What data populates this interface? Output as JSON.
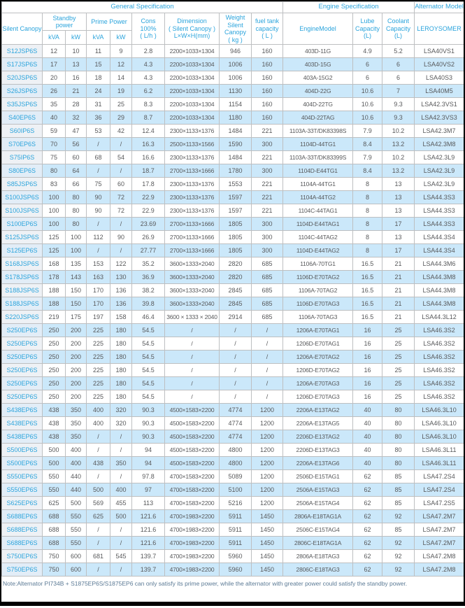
{
  "colors": {
    "header_text": "#2ba4dc",
    "model_text": "#2ba4dc",
    "data_text": "#58595b",
    "row_alt_bg": "#cbe8fa",
    "model_bg": "#eef1f5",
    "model_alt_bg": "#e2edf7",
    "border": "#bdbfc1",
    "note_text": "#5b7a95",
    "frame": "#000000"
  },
  "header": {
    "group_general": "General Specification",
    "group_engine": "Engine Specification",
    "group_alternator": "Alternator Model",
    "silent_canopy": "Silent Canopy",
    "standby_power": "Standby\npower",
    "prime_power": "Prime Power",
    "units": [
      "kVA",
      "kW",
      "kVA",
      "kW"
    ],
    "cons": "Cons\n100%\n( L/h )",
    "dimension": "Dimension\n( Silent Canopy )\nL×W×H(mm)",
    "weight": "Weight\nSilent\nCanopy\n( kg )",
    "fuel_tank": "fuel tank\ncapacity\n( L )",
    "engine_model": "EngineModel",
    "lube": "Lube\nCapacity\n(L)",
    "coolant": "Coolant\nCapacity\n(L)",
    "alternator": "LEROYSOMER"
  },
  "rows": [
    [
      "S12JSP6S",
      "12",
      "10",
      "11",
      "9",
      "2.8",
      "2200×1033×1304",
      "946",
      "160",
      "403D-11G",
      "4.9",
      "5.2",
      "LSA40VS1"
    ],
    [
      "S17JSP6S",
      "17",
      "13",
      "15",
      "12",
      "4.3",
      "2200×1033×1304",
      "1006",
      "160",
      "403D-15G",
      "6",
      "6",
      "LSA40VS2"
    ],
    [
      "S20JSP6S",
      "20",
      "16",
      "18",
      "14",
      "4.3",
      "2200×1033×1304",
      "1006",
      "160",
      "403A-15G2",
      "6",
      "6",
      "LSA40S3"
    ],
    [
      "S26JSP6S",
      "26",
      "21",
      "24",
      "19",
      "6.2",
      "2200×1033×1304",
      "1130",
      "160",
      "404D-22G",
      "10.6",
      "7",
      "LSA40M5"
    ],
    [
      "S35JSP6S",
      "35",
      "28",
      "31",
      "25",
      "8.3",
      "2200×1033×1304",
      "1154",
      "160",
      "404D-22TG",
      "10.6",
      "9.3",
      "LSA42.3VS1"
    ],
    [
      "S40EP6S",
      "40",
      "32",
      "36",
      "29",
      "8.7",
      "2200×1033×1304",
      "1180",
      "160",
      "404D-22TAG",
      "10.6",
      "9.3",
      "LSA42.3VS3"
    ],
    [
      "S60IP6S",
      "59",
      "47",
      "53",
      "42",
      "12.4",
      "2300×1133×1376",
      "1484",
      "221",
      "1103A-33T/DK83398S",
      "7.9",
      "10.2",
      "LSA42.3M7"
    ],
    [
      "S70EP6S",
      "70",
      "56",
      "/",
      "/",
      "16.3",
      "2500×1133×1566",
      "1590",
      "300",
      "1104D-44TG1",
      "8.4",
      "13.2",
      "LSA42.3M8"
    ],
    [
      "S75IP6S",
      "75",
      "60",
      "68",
      "54",
      "16.6",
      "2300×1133×1376",
      "1484",
      "221",
      "1103A-33T/DK83399S",
      "7.9",
      "10.2",
      "LSA42.3L9"
    ],
    [
      "S80EP6S",
      "80",
      "64",
      "/",
      "/",
      "18.7",
      "2700×1133×1666",
      "1780",
      "300",
      "1104D-E44TG1",
      "8.4",
      "13.2",
      "LSA42.3L9"
    ],
    [
      "S85JSP6S",
      "83",
      "66",
      "75",
      "60",
      "17.8",
      "2300×1133×1376",
      "1553",
      "221",
      "1104A-44TG1",
      "8",
      "13",
      "LSA42.3L9"
    ],
    [
      "S100JSP6S",
      "100",
      "80",
      "90",
      "72",
      "22.9",
      "2300×1133×1376",
      "1597",
      "221",
      "1104A-44TG2",
      "8",
      "13",
      "LSA44.3S3"
    ],
    [
      "S100JSP6S",
      "100",
      "80",
      "90",
      "72",
      "22.9",
      "2300×1133×1376",
      "1597",
      "221",
      "1104C-44TAG1",
      "8",
      "13",
      "LSA44.3S3"
    ],
    [
      "S100EP6S",
      "100",
      "80",
      "/",
      "/",
      "23.69",
      "2700×1133×1666",
      "1805",
      "300",
      "1104D-E44TAG1",
      "8",
      "17",
      "LSA44.3S3"
    ],
    [
      "S125JSP6S",
      "125",
      "100",
      "112",
      "90",
      "26.9",
      "2700×1133×1666",
      "1805",
      "300",
      "1104C-44TAG2",
      "8",
      "13",
      "LSA44.3S4"
    ],
    [
      "S125EP6S",
      "125",
      "100",
      "/",
      "/",
      "27.77",
      "2700×1133×1666",
      "1805",
      "300",
      "1104D-E44TAG2",
      "8",
      "17",
      "LSA44.3S4"
    ],
    [
      "S168JSP6S",
      "168",
      "135",
      "153",
      "122",
      "35.2",
      "3600×1333×2040",
      "2820",
      "685",
      "1106A-70TG1",
      "16.5",
      "21",
      "LSA44.3M6"
    ],
    [
      "S178JSP6S",
      "178",
      "143",
      "163",
      "130",
      "36.9",
      "3600×1333×2040",
      "2820",
      "685",
      "1106D-E70TAG2",
      "16.5",
      "21",
      "LSA44.3M8"
    ],
    [
      "S188JSP6S",
      "188",
      "150",
      "170",
      "136",
      "38.2",
      "3600×1333×2040",
      "2845",
      "685",
      "1106A-70TAG2",
      "16.5",
      "21",
      "LSA44.3M8"
    ],
    [
      "S188JSP6S",
      "188",
      "150",
      "170",
      "136",
      "39.8",
      "3600×1333×2040",
      "2845",
      "685",
      "1106D-E70TAG3",
      "16.5",
      "21",
      "LSA44.3M8"
    ],
    [
      "S220JSP6S",
      "219",
      "175",
      "197",
      "158",
      "46.4",
      "3600 × 1333 × 2040",
      "2914",
      "685",
      "1106A-70TAG3",
      "16.5",
      "21",
      "LSA44.3L12"
    ],
    [
      "S250EP6S",
      "250",
      "200",
      "225",
      "180",
      "54.5",
      "/",
      "/",
      "/",
      "1206A-E70TAG1",
      "16",
      "25",
      "LSA46.3S2"
    ],
    [
      "S250EP6S",
      "250",
      "200",
      "225",
      "180",
      "54.5",
      "/",
      "/",
      "/",
      "1206D-E70TAG1",
      "16",
      "25",
      "LSA46.3S2"
    ],
    [
      "S250EP6S",
      "250",
      "200",
      "225",
      "180",
      "54.5",
      "/",
      "/",
      "/",
      "1206A-E70TAG2",
      "16",
      "25",
      "LSA46.3S2"
    ],
    [
      "S250EP6S",
      "250",
      "200",
      "225",
      "180",
      "54.5",
      "/",
      "/",
      "/",
      "1206D-E70TAG2",
      "16",
      "25",
      "LSA46.3S2"
    ],
    [
      "S250EP6S",
      "250",
      "200",
      "225",
      "180",
      "54.5",
      "/",
      "/",
      "/",
      "1206A-E70TAG3",
      "16",
      "25",
      "LSA46.3S2"
    ],
    [
      "S250EP6S",
      "250",
      "200",
      "225",
      "180",
      "54.5",
      "/",
      "/",
      "/",
      "1206D-E70TAG3",
      "16",
      "25",
      "LSA46.3S2"
    ],
    [
      "S438EP6S",
      "438",
      "350",
      "400",
      "320",
      "90.3",
      "4500×1583×2200",
      "4774",
      "1200",
      "2206A-E13TAG2",
      "40",
      "80",
      "LSA46.3L10"
    ],
    [
      "S438EP6S",
      "438",
      "350",
      "400",
      "320",
      "90.3",
      "4500×1583×2200",
      "4774",
      "1200",
      "2206A-E13TAG5",
      "40",
      "80",
      "LSA46.3L10"
    ],
    [
      "S438EP6S",
      "438",
      "350",
      "/",
      "/",
      "90.3",
      "4500×1583×2200",
      "4774",
      "1200",
      "2206D-E13TAG2",
      "40",
      "80",
      "LSA46.3L10"
    ],
    [
      "S500EP6S",
      "500",
      "400",
      "/",
      "/",
      "94",
      "4500×1583×2200",
      "4800",
      "1200",
      "2206D-E13TAG3",
      "40",
      "80",
      "LSA46.3L11"
    ],
    [
      "S500EP6S",
      "500",
      "400",
      "438",
      "350",
      "94",
      "4500×1583×2200",
      "4800",
      "1200",
      "2206A-E13TAG6",
      "40",
      "80",
      "LSA46.3L11"
    ],
    [
      "S550EP6S",
      "550",
      "440",
      "/",
      "/",
      "97.8",
      "4700×1583×2200",
      "5089",
      "1200",
      "2506D-E15TAG1",
      "62",
      "85",
      "LSA47.2S4"
    ],
    [
      "S550EP6S",
      "550",
      "440",
      "500",
      "400",
      "97",
      "4700×1583×2200",
      "5100",
      "1200",
      "2506A-E15TAG3",
      "62",
      "85",
      "LSA47.2S4"
    ],
    [
      "S625EP6S",
      "625",
      "500",
      "569",
      "455",
      "113",
      "4700×1583×2200",
      "5216",
      "1200",
      "2506A-E15TAG4",
      "62",
      "85",
      "LSA47.2S5"
    ],
    [
      "S688EP6S",
      "688",
      "550",
      "625",
      "500",
      "121.6",
      "4700×1983×2200",
      "5911",
      "1450",
      "2806A-E18TAG1A",
      "62",
      "92",
      "LSA47.2M7"
    ],
    [
      "S688EP6S",
      "688",
      "550",
      "/",
      "/",
      "121.6",
      "4700×1983×2200",
      "5911",
      "1450",
      "2506C-E15TAG4",
      "62",
      "85",
      "LSA47.2M7"
    ],
    [
      "S688EP6S",
      "688",
      "550",
      "/",
      "/",
      "121.6",
      "4700×1983×2200",
      "5911",
      "1450",
      "2806C-E18TAG1A",
      "62",
      "92",
      "LSA47.2M7"
    ],
    [
      "S750EP6S",
      "750",
      "600",
      "681",
      "545",
      "139.7",
      "4700×1983×2200",
      "5960",
      "1450",
      "2806A-E18TAG3",
      "62",
      "92",
      "LSA47.2M8"
    ],
    [
      "S750EP6S",
      "750",
      "600",
      "/",
      "/",
      "139.7",
      "4700×1983×2200",
      "5960",
      "1450",
      "2806C-E18TAG3",
      "62",
      "92",
      "LSA47.2M8"
    ]
  ],
  "note": "Note:Alternator PI734B + S1875EP6S/S1875EP6 can only satisfy its prime power, while the alternator with greater power could satisfy the standby power."
}
